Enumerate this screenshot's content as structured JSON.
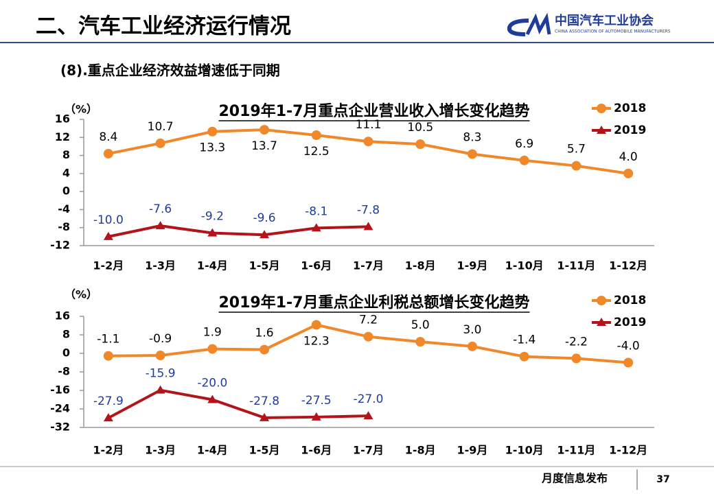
{
  "header": {
    "title": "二、汽车工业经济运行情况",
    "logo_name": "中国汽车工业协会",
    "logo_subtitle": "CHINA ASSOCIATION OF AUTOMOBILE MANUFACTURERS"
  },
  "subtitle": "(8).重点企业经济效益增速低于同期",
  "footer": {
    "text": "月度信息发布",
    "page": "37"
  },
  "chart_data": [
    {
      "type": "line",
      "title": "2019年1-7月重点企业营业收入增长变化趋势",
      "y_label": "（%）",
      "categories": [
        "1-2月",
        "1-3月",
        "1-4月",
        "1-5月",
        "1-6月",
        "1-7月",
        "1-8月",
        "1-9月",
        "1-10月",
        "1-11月",
        "1-12月"
      ],
      "series": [
        {
          "name": "2018",
          "color": "#F0882A",
          "marker": "circle",
          "label_color": "#000000",
          "values": [
            8.4,
            10.7,
            13.3,
            13.7,
            12.5,
            11.1,
            10.5,
            8.3,
            6.9,
            5.7,
            4.0
          ],
          "value_labels": [
            "8.4",
            "10.7",
            "13.3",
            "13.7",
            "12.5",
            "11.1",
            "10.5",
            "8.3",
            "6.9",
            "5.7",
            "4.0"
          ]
        },
        {
          "name": "2019",
          "color": "#B3141B",
          "marker": "triangle",
          "label_color": "#1F3C9A",
          "values": [
            -10.0,
            -7.6,
            -9.2,
            -9.6,
            -8.1,
            -7.8,
            null,
            null,
            null,
            null,
            null
          ],
          "value_labels": [
            "-10.0",
            "-7.6",
            "-9.2",
            "-9.6",
            "-8.1",
            "-7.8",
            null,
            null,
            null,
            null,
            null
          ]
        }
      ],
      "ylim": [
        -12,
        16
      ],
      "yticks": [
        16,
        12,
        8,
        4,
        0,
        -4,
        -8,
        -12
      ],
      "legend": "top-right"
    },
    {
      "type": "line",
      "title": "2019年1-7月重点企业利税总额增长变化趋势",
      "y_label": "（%）",
      "categories": [
        "1-2月",
        "1-3月",
        "1-4月",
        "1-5月",
        "1-6月",
        "1-7月",
        "1-8月",
        "1-9月",
        "1-10月",
        "1-11月",
        "1-12月"
      ],
      "series": [
        {
          "name": "2018",
          "color": "#F0882A",
          "marker": "circle",
          "label_color": "#000000",
          "values": [
            -1.1,
            -0.9,
            1.9,
            1.6,
            12.3,
            7.2,
            5.0,
            3.0,
            -1.4,
            -2.2,
            -4.0
          ],
          "value_labels": [
            "-1.1",
            "-0.9",
            "1.9",
            "1.6",
            "12.3",
            "7.2",
            "5.0",
            "3.0",
            "-1.4",
            "-2.2",
            "-4.0"
          ]
        },
        {
          "name": "2019",
          "color": "#B3141B",
          "marker": "triangle",
          "label_color": "#1F3C9A",
          "values": [
            -27.9,
            -15.9,
            -20.0,
            -27.8,
            -27.5,
            -27.0,
            null,
            null,
            null,
            null,
            null
          ],
          "value_labels": [
            "-27.9",
            "-15.9",
            "-20.0",
            "-27.8",
            "-27.5",
            "-27.0",
            null,
            null,
            null,
            null,
            null
          ]
        }
      ],
      "ylim": [
        -32,
        16
      ],
      "yticks": [
        16,
        8,
        0,
        -8,
        -16,
        -24,
        -32
      ],
      "legend": "top-right"
    }
  ]
}
